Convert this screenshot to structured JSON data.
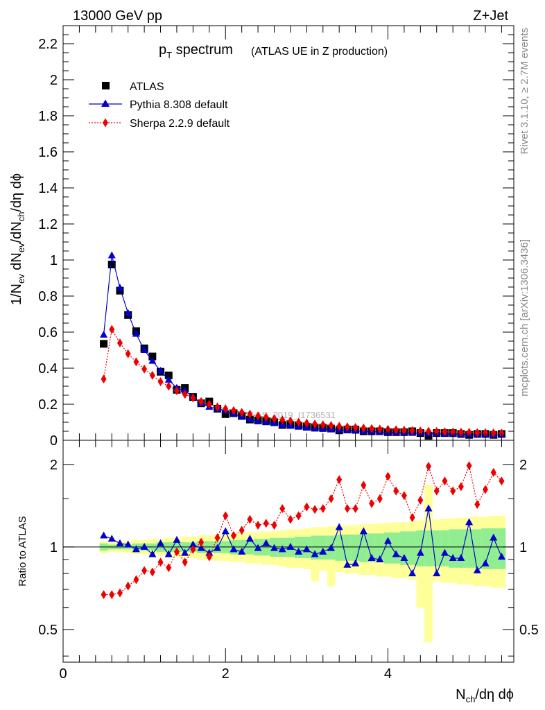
{
  "header": {
    "left": "13000 GeV pp",
    "right": "Z+Jet"
  },
  "side_labels": {
    "top": "Rivet 3.1.10, ≥ 2.7M events",
    "bottom": "mcplots.cern.ch [arXiv:1306.3436]"
  },
  "watermark": "ATLAS_2019_I1736531",
  "chart_data": [
    {
      "type": "scatter",
      "title": "p_T spectrum",
      "title_main": "p",
      "title_sub": "T",
      "title_rest": " spectrum",
      "subtitle": "(ATLAS UE in Z production)",
      "ylabel": "1/N_ev dN_ev/dN_ch/dη dϕ",
      "xlim": [
        0,
        5.55
      ],
      "ylim": [
        0,
        2.3
      ],
      "yticks": [
        "0",
        "0.2",
        "0.4",
        "0.6",
        "0.8",
        "1",
        "1.2",
        "1.4",
        "1.6",
        "1.8",
        "2",
        "2.2"
      ],
      "legend_position": "top-left",
      "x": [
        0.5,
        0.6,
        0.7,
        0.8,
        0.9,
        1.0,
        1.1,
        1.2,
        1.3,
        1.4,
        1.5,
        1.6,
        1.7,
        1.8,
        1.9,
        2.0,
        2.1,
        2.2,
        2.3,
        2.4,
        2.5,
        2.6,
        2.7,
        2.8,
        2.9,
        3.0,
        3.1,
        3.2,
        3.3,
        3.4,
        3.5,
        3.6,
        3.7,
        3.8,
        3.9,
        4.0,
        4.1,
        4.2,
        4.3,
        4.4,
        4.5,
        4.6,
        4.7,
        4.8,
        4.9,
        5.0,
        5.1,
        5.2,
        5.3,
        5.4
      ],
      "series": [
        {
          "name": "ATLAS",
          "color": "#000000",
          "marker": "square",
          "values": [
            0.535,
            0.975,
            0.83,
            0.695,
            0.605,
            0.51,
            0.465,
            0.38,
            0.36,
            0.28,
            0.29,
            0.24,
            0.205,
            0.215,
            0.175,
            0.145,
            0.15,
            0.135,
            0.115,
            0.11,
            0.105,
            0.1,
            0.085,
            0.085,
            0.08,
            0.075,
            0.07,
            0.07,
            0.065,
            0.055,
            0.06,
            0.06,
            0.05,
            0.05,
            0.05,
            0.045,
            0.045,
            0.045,
            0.05,
            0.04,
            0.025,
            0.04,
            0.04,
            0.04,
            0.035,
            0.03,
            0.035,
            0.035,
            0.03,
            0.035
          ]
        },
        {
          "name": "Pythia 8.308 default",
          "color": "#0000cc",
          "marker": "triangle",
          "values": [
            0.585,
            1.025,
            0.845,
            0.705,
            0.59,
            0.5,
            0.44,
            0.385,
            0.335,
            0.29,
            0.275,
            0.24,
            0.205,
            0.185,
            0.175,
            0.165,
            0.145,
            0.13,
            0.115,
            0.105,
            0.1,
            0.095,
            0.085,
            0.08,
            0.075,
            0.07,
            0.065,
            0.062,
            0.06,
            0.058,
            0.055,
            0.052,
            0.05,
            0.048,
            0.046,
            0.044,
            0.043,
            0.042,
            0.04,
            0.039,
            0.037,
            0.036,
            0.035,
            0.034,
            0.033,
            0.032,
            0.031,
            0.03,
            0.03,
            0.029
          ]
        },
        {
          "name": "Sherpa 2.2.9 default",
          "color": "#ee0000",
          "marker": "diamond",
          "values": [
            0.34,
            0.615,
            0.54,
            0.48,
            0.435,
            0.395,
            0.36,
            0.325,
            0.3,
            0.275,
            0.255,
            0.235,
            0.215,
            0.2,
            0.185,
            0.175,
            0.165,
            0.155,
            0.145,
            0.135,
            0.128,
            0.12,
            0.113,
            0.107,
            0.1,
            0.095,
            0.09,
            0.086,
            0.082,
            0.078,
            0.074,
            0.071,
            0.068,
            0.065,
            0.062,
            0.06,
            0.058,
            0.056,
            0.054,
            0.052,
            0.05,
            0.049,
            0.047,
            0.046,
            0.045,
            0.044,
            0.043,
            0.042,
            0.041,
            0.04
          ]
        }
      ]
    },
    {
      "type": "line",
      "ylabel": "Ratio to ATLAS",
      "xlabel": "N_ch/dη dϕ",
      "xlabel_main": "N",
      "xlabel_sub": "ch",
      "xlabel_rest": "/dη dϕ",
      "xlim": [
        0,
        5.55
      ],
      "ylim": [
        0.38,
        2.45
      ],
      "xticks": [
        "0",
        "2",
        "4"
      ],
      "yticks": [
        "0.5",
        "1",
        "2"
      ],
      "reference_line": 1,
      "x": [
        0.5,
        0.6,
        0.7,
        0.8,
        0.9,
        1.0,
        1.1,
        1.2,
        1.3,
        1.4,
        1.5,
        1.6,
        1.7,
        1.8,
        1.9,
        2.0,
        2.1,
        2.2,
        2.3,
        2.4,
        2.5,
        2.6,
        2.7,
        2.8,
        2.9,
        3.0,
        3.1,
        3.2,
        3.3,
        3.4,
        3.5,
        3.6,
        3.7,
        3.8,
        3.9,
        4.0,
        4.1,
        4.2,
        4.3,
        4.4,
        4.5,
        4.6,
        4.7,
        4.8,
        4.9,
        5.0,
        5.1,
        5.2,
        5.3,
        5.4
      ],
      "uncertainty_bands": [
        {
          "name": "inner",
          "color": "#90ee90",
          "low": [
            0.97,
            0.98,
            0.98,
            0.98,
            0.97,
            0.97,
            0.97,
            0.96,
            0.96,
            0.96,
            0.96,
            0.96,
            0.95,
            0.95,
            0.95,
            0.95,
            0.94,
            0.94,
            0.94,
            0.93,
            0.93,
            0.92,
            0.92,
            0.92,
            0.91,
            0.91,
            0.9,
            0.9,
            0.9,
            0.89,
            0.89,
            0.89,
            0.88,
            0.88,
            0.88,
            0.87,
            0.87,
            0.86,
            0.86,
            0.85,
            0.85,
            0.85,
            0.85,
            0.84,
            0.84,
            0.84,
            0.84,
            0.83,
            0.83,
            0.83
          ],
          "high": [
            1.03,
            1.02,
            1.02,
            1.02,
            1.03,
            1.03,
            1.03,
            1.04,
            1.04,
            1.04,
            1.04,
            1.04,
            1.05,
            1.05,
            1.05,
            1.05,
            1.06,
            1.06,
            1.06,
            1.07,
            1.07,
            1.08,
            1.08,
            1.08,
            1.09,
            1.09,
            1.1,
            1.1,
            1.1,
            1.11,
            1.11,
            1.11,
            1.12,
            1.12,
            1.12,
            1.13,
            1.13,
            1.14,
            1.14,
            1.15,
            1.15,
            1.15,
            1.15,
            1.16,
            1.16,
            1.16,
            1.16,
            1.17,
            1.17,
            1.17
          ]
        },
        {
          "name": "outer",
          "color": "#ffff99",
          "low": [
            0.95,
            0.96,
            0.96,
            0.95,
            0.94,
            0.94,
            0.93,
            0.93,
            0.92,
            0.92,
            0.91,
            0.91,
            0.9,
            0.9,
            0.89,
            0.89,
            0.88,
            0.88,
            0.87,
            0.87,
            0.86,
            0.86,
            0.85,
            0.84,
            0.84,
            0.83,
            0.75,
            0.82,
            0.72,
            0.81,
            0.8,
            0.8,
            0.79,
            0.79,
            0.78,
            0.78,
            0.77,
            0.77,
            0.76,
            0.6,
            0.45,
            0.75,
            0.74,
            0.74,
            0.73,
            0.73,
            0.72,
            0.72,
            0.71,
            0.71
          ],
          "high": [
            1.05,
            1.04,
            1.04,
            1.05,
            1.06,
            1.06,
            1.07,
            1.07,
            1.08,
            1.08,
            1.09,
            1.09,
            1.1,
            1.1,
            1.11,
            1.11,
            1.12,
            1.12,
            1.13,
            1.13,
            1.14,
            1.14,
            1.15,
            1.16,
            1.16,
            1.17,
            1.18,
            1.18,
            1.19,
            1.19,
            1.2,
            1.2,
            1.21,
            1.21,
            1.22,
            1.22,
            1.23,
            1.23,
            1.24,
            1.25,
            1.68,
            1.26,
            1.27,
            1.27,
            1.28,
            1.28,
            1.29,
            1.29,
            1.3,
            1.3
          ]
        }
      ],
      "series": [
        {
          "name": "Pythia 8.308 default",
          "color": "#0000cc",
          "marker": "triangle",
          "values": [
            1.1,
            1.07,
            1.03,
            1.02,
            0.98,
            1.0,
            0.94,
            1.03,
            0.94,
            1.06,
            0.95,
            1.02,
            0.99,
            0.95,
            0.99,
            1.14,
            0.98,
            0.96,
            1.07,
            0.99,
            1.03,
            0.99,
            0.98,
            1.0,
            0.96,
            0.98,
            0.94,
            0.96,
            0.99,
            1.18,
            0.86,
            0.87,
            1.14,
            0.91,
            0.9,
            1.05,
            0.94,
            0.91,
            0.8,
            0.95,
            1.38,
            0.8,
            0.95,
            0.91,
            0.91,
            1.23,
            0.82,
            0.87,
            1.08,
            0.92
          ]
        },
        {
          "name": "Sherpa 2.2.9 default",
          "color": "#ee0000",
          "marker": "diamond",
          "values": [
            0.67,
            0.67,
            0.68,
            0.72,
            0.76,
            0.82,
            0.81,
            0.88,
            0.84,
            0.96,
            0.88,
            0.98,
            1.04,
            0.92,
            1.08,
            1.3,
            1.1,
            1.15,
            1.26,
            1.2,
            1.22,
            1.2,
            1.38,
            1.26,
            1.3,
            1.4,
            1.37,
            1.38,
            1.5,
            1.76,
            1.38,
            1.38,
            1.68,
            1.44,
            1.5,
            1.81,
            1.6,
            1.54,
            1.28,
            1.48,
            1.97,
            1.6,
            1.74,
            1.6,
            1.66,
            1.98,
            1.43,
            1.62,
            1.87,
            1.74
          ]
        }
      ]
    }
  ]
}
